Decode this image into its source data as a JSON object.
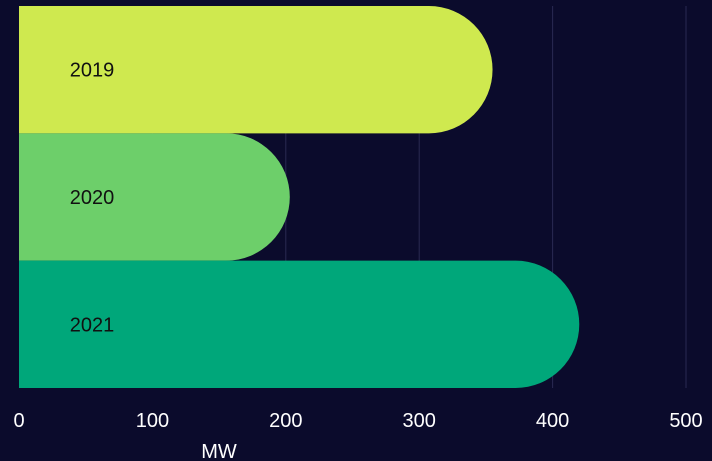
{
  "chart_data": {
    "type": "bar",
    "orientation": "horizontal",
    "categories": [
      "2019",
      "2020",
      "2021"
    ],
    "values": [
      355,
      203,
      420
    ],
    "bar_colors": [
      "#cfe94f",
      "#6dcf6a",
      "#00a77a"
    ],
    "background": "#0b0b2c",
    "gridline_color": "#2a2a52",
    "xlabel": "MW",
    "ylabel": "",
    "xlim": [
      0,
      500
    ],
    "xticks": [
      "0",
      "100",
      "200",
      "300",
      "400",
      "500"
    ],
    "grid": true,
    "legend": "none"
  }
}
